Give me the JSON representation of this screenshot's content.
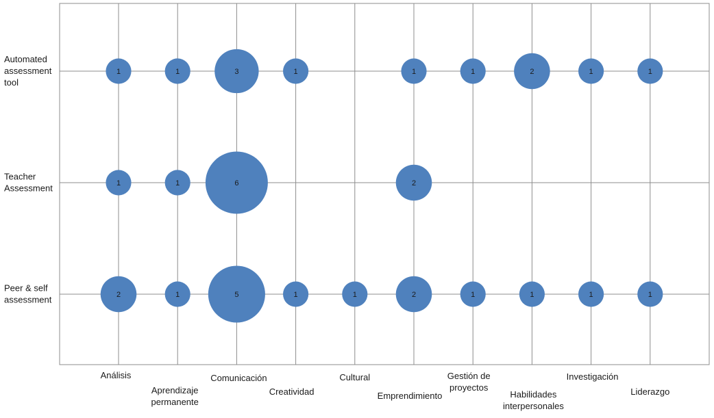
{
  "chart_data": {
    "type": "bubble",
    "title": "",
    "xlabel": "",
    "ylabel": "",
    "grid": true,
    "legend": "none",
    "colors": {
      "bubble": "#4f81bd",
      "grid": "#8c8c8c"
    },
    "categories": [
      "Análisis",
      "Aprendizaje permanente",
      "Comunicación",
      "Creatividad",
      "Cultural",
      "Emprendimiento",
      "Gestión de proyectos",
      "Habilidades interpersonales",
      "Investigación",
      "Liderazgo"
    ],
    "rows": [
      "Automated assessment tool",
      "Teacher Assessment",
      "Peer & self assessment"
    ],
    "values": [
      [
        1,
        1,
        3,
        1,
        0,
        1,
        1,
        2,
        1,
        1
      ],
      [
        1,
        1,
        6,
        0,
        0,
        2,
        0,
        0,
        0,
        0
      ],
      [
        2,
        1,
        5,
        1,
        1,
        2,
        1,
        1,
        1,
        1
      ]
    ]
  }
}
